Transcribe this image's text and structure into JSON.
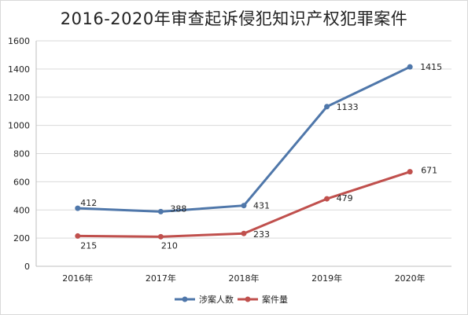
{
  "chart_data": {
    "type": "line",
    "title": "2016-2020年审查起诉侵犯知识产权犯罪案件",
    "categories": [
      "2016年",
      "2017年",
      "2018年",
      "2019年",
      "2020年"
    ],
    "ylim": [
      0,
      1600
    ],
    "yticks": [
      0,
      200,
      400,
      600,
      800,
      1000,
      1200,
      1400,
      1600
    ],
    "grid": true,
    "legend_position": "bottom",
    "series": [
      {
        "name": "涉案人数",
        "color": "#4f77aa",
        "values": [
          412,
          388,
          431,
          1133,
          1415
        ]
      },
      {
        "name": "案件量",
        "color": "#c0504d",
        "values": [
          215,
          210,
          233,
          479,
          671
        ]
      }
    ]
  }
}
